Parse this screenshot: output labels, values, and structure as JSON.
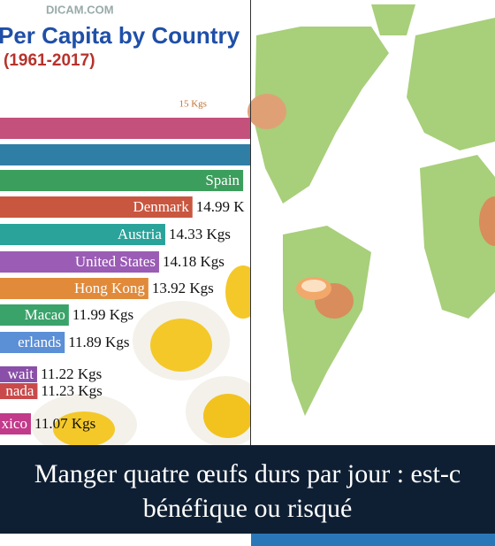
{
  "watermark": "DICAM.COM",
  "chart_data": {
    "type": "bar",
    "orientation": "horizontal",
    "title": "Per Capita by Country",
    "subtitle": "(1961-2017)",
    "categories": [
      null,
      null,
      "Spain",
      "Denmark",
      "Austria",
      "United States",
      "Hong Kong",
      "Macao",
      "erlands",
      "wait",
      "nada",
      "xico"
    ],
    "values": [
      16.6,
      16.5,
      16.22,
      14.99,
      14.33,
      14.18,
      13.92,
      11.99,
      11.89,
      11.22,
      11.23,
      11.07
    ],
    "value_labels": [
      null,
      null,
      null,
      "14.99 K",
      "14.33 Kgs",
      "14.18 Kgs",
      "13.92 Kgs",
      "11.99 Kgs",
      "11.89 Kgs",
      "11.22 Kgs",
      "11.23 Kgs",
      "11.07 Kgs"
    ],
    "colors": [
      "#c4507c",
      "#2f7ea6",
      "#3c9e5c",
      "#c9563f",
      "#2aa39a",
      "#9a5cb4",
      "#e08a3a",
      "#3aa36a",
      "#5b8fd6",
      "#8a4fa8",
      "#c94a4a",
      "#c23a8a"
    ],
    "xlim": [
      10.32,
      16.39
    ],
    "xticks": [
      {
        "value": 15,
        "label": "15 Kgs"
      }
    ]
  },
  "caption": {
    "lines": [
      "Manger quatre œufs durs par jour : est-c",
      "bénéfique ou risqué"
    ]
  }
}
